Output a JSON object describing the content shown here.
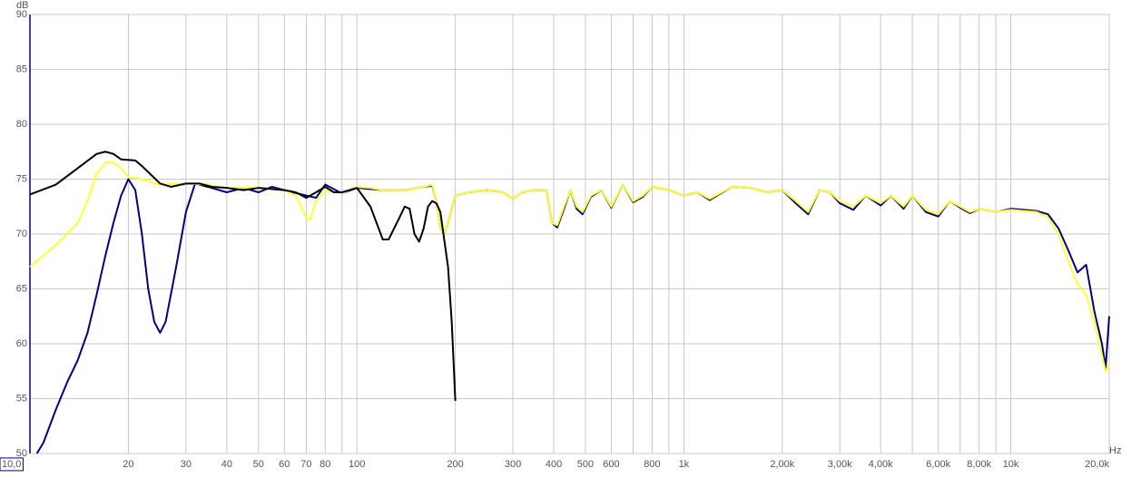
{
  "chart_data": {
    "type": "line",
    "y_unit": "dB",
    "x_unit": "Hz",
    "xscale": "log",
    "grid": true,
    "xlim": [
      10,
      20000
    ],
    "ylim": [
      50,
      90
    ],
    "yticks": [
      50,
      55,
      60,
      65,
      70,
      75,
      80,
      85,
      90
    ],
    "xticks": [
      {
        "value": 10,
        "label": "10,0"
      },
      20,
      30,
      40,
      50,
      60,
      70,
      80,
      100,
      200,
      300,
      400,
      500,
      600,
      800,
      {
        "value": 1000,
        "label": "1k"
      },
      {
        "value": 2000,
        "label": "2,00k"
      },
      {
        "value": 3000,
        "label": "3,00k"
      },
      {
        "value": 4000,
        "label": "4,00k"
      },
      {
        "value": 6000,
        "label": "6,00k"
      },
      {
        "value": 8000,
        "label": "8,00k"
      },
      {
        "value": 10000,
        "label": "10k"
      },
      {
        "value": 20000,
        "label": "20,0k"
      }
    ],
    "x_minor_gridlines": [
      90,
      700,
      900,
      5000,
      7000,
      9000
    ],
    "series": [
      {
        "color": "#000080",
        "x": [
          10.5,
          11,
          12,
          13,
          14,
          15,
          16,
          17,
          18,
          19,
          20,
          21,
          22,
          23,
          24,
          25,
          26,
          28,
          30,
          32,
          35,
          40,
          45,
          50,
          55,
          60,
          70,
          75,
          80,
          90,
          100,
          110,
          120,
          140,
          160,
          170,
          175,
          180,
          185,
          190,
          200,
          220,
          250,
          280,
          300,
          320,
          350,
          380,
          395,
          410,
          430,
          450,
          470,
          490,
          520,
          560,
          600,
          650,
          700,
          750,
          800,
          900,
          1000,
          1100,
          1200,
          1400,
          1600,
          1800,
          2000,
          2200,
          2400,
          2600,
          2800,
          3000,
          3300,
          3600,
          4000,
          4300,
          4700,
          5000,
          5500,
          6000,
          6500,
          7000,
          7500,
          8000,
          9000,
          10000,
          11000,
          12000,
          13000,
          14000,
          15000,
          16000,
          17000,
          18000,
          19000,
          19500,
          20000
        ],
        "values": [
          50,
          51,
          54,
          56.5,
          58.5,
          61,
          64.5,
          68,
          71,
          73.5,
          75,
          74,
          70,
          65,
          62,
          61,
          62,
          67,
          72,
          74.6,
          74.3,
          73.8,
          74.2,
          73.8,
          74.3,
          74,
          73.5,
          73.3,
          74.5,
          73.7,
          74.2,
          74.1,
          74,
          74,
          74.3,
          74.4,
          73,
          70.5,
          70,
          71,
          73.5,
          73.8,
          74,
          73.8,
          73.2,
          73.8,
          74,
          74,
          71,
          70.6,
          72.3,
          74,
          72.3,
          71.8,
          73.4,
          74,
          72.4,
          74.5,
          72.9,
          73.4,
          74.3,
          74,
          73.5,
          73.8,
          73.1,
          74.3,
          74.2,
          73.8,
          74,
          72.8,
          71.8,
          74,
          73.8,
          72.8,
          72.2,
          73.5,
          72.6,
          73.5,
          72.3,
          73.5,
          72,
          71.6,
          73,
          72.4,
          71.9,
          72.3,
          72,
          72.3,
          72.2,
          72.1,
          71.8,
          70.5,
          68.5,
          66.5,
          67.2,
          63,
          60,
          57.8,
          62.5
        ]
      },
      {
        "color": "#ffff33",
        "x": [
          10,
          12,
          14,
          15,
          16,
          17,
          18,
          19,
          20,
          22,
          25,
          30,
          35,
          40,
          50,
          60,
          65,
          70,
          72,
          75,
          80,
          90,
          100,
          110,
          120,
          140,
          160,
          170,
          175,
          180,
          185,
          190,
          200,
          220,
          250,
          280,
          300,
          320,
          350,
          380,
          395,
          410,
          430,
          450,
          470,
          490,
          520,
          560,
          600,
          650,
          700,
          750,
          800,
          900,
          1000,
          1100,
          1200,
          1400,
          1600,
          1800,
          2000,
          2200,
          2400,
          2600,
          2800,
          3000,
          3300,
          3600,
          4000,
          4300,
          4700,
          5000,
          5500,
          6000,
          6500,
          7000,
          7500,
          8000,
          9000,
          10000,
          11000,
          12000,
          13000,
          14000,
          15000,
          16000,
          17000,
          18000,
          19000,
          19500,
          20000
        ],
        "values": [
          67,
          69,
          71,
          73,
          75.5,
          76.5,
          76.5,
          76,
          75.2,
          75,
          74.5,
          74.6,
          74.5,
          74.2,
          74.2,
          74,
          73.5,
          71.5,
          71.3,
          73,
          74,
          73.7,
          74.3,
          74.2,
          74,
          74,
          74.3,
          74.5,
          73,
          70.5,
          70,
          71,
          73.5,
          73.8,
          74,
          73.8,
          73.2,
          73.8,
          74,
          74,
          71,
          70.8,
          72.5,
          74,
          72.5,
          72,
          73.5,
          74,
          72.5,
          74.5,
          73,
          73.5,
          74.3,
          74,
          73.5,
          73.8,
          73.2,
          74.3,
          74.2,
          73.8,
          74,
          73,
          72,
          74,
          73.8,
          73,
          72.5,
          73.5,
          72.8,
          73.5,
          72.5,
          73.5,
          72.2,
          71.8,
          73,
          72.5,
          72,
          72.3,
          72,
          72.2,
          72.1,
          72,
          71.5,
          70,
          67.5,
          65.5,
          64.5,
          62,
          59,
          57.5,
          58
        ]
      },
      {
        "color": "#000000",
        "x": [
          10,
          12,
          14,
          16,
          17,
          18,
          19,
          21,
          22,
          25,
          27,
          30,
          33,
          36,
          40,
          45,
          50,
          60,
          65,
          70,
          75,
          80,
          85,
          90,
          100,
          110,
          120,
          125,
          135,
          140,
          145,
          150,
          155,
          160,
          165,
          170,
          175,
          180,
          190,
          195,
          200
        ],
        "values": [
          73.6,
          74.5,
          76,
          77.3,
          77.5,
          77.3,
          76.8,
          76.7,
          76.2,
          74.6,
          74.3,
          74.6,
          74.6,
          74.3,
          74.2,
          74,
          74.2,
          74,
          73.8,
          73.3,
          73.8,
          74.3,
          73.8,
          73.8,
          74.2,
          72.5,
          69.5,
          69.5,
          71.5,
          72.5,
          72.3,
          70,
          69.3,
          70.5,
          72.5,
          73,
          72.8,
          72,
          67,
          62,
          54.8
        ]
      }
    ]
  }
}
